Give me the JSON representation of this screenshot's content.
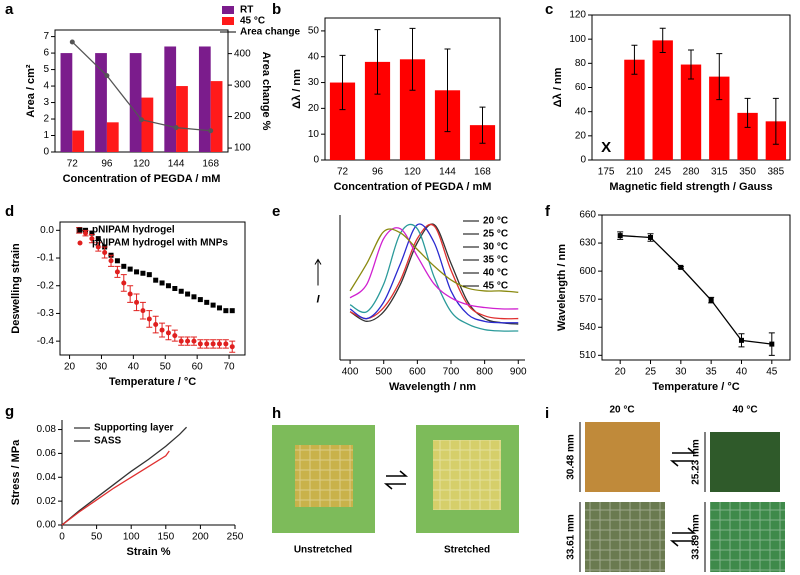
{
  "chart_data": [
    {
      "type": "bar",
      "panel_label": "a",
      "categories": [
        "72",
        "96",
        "120",
        "144",
        "168"
      ],
      "series": [
        {
          "name": "RT",
          "color": "#7b1c8c",
          "values": [
            6,
            6,
            6,
            6.4,
            6.4
          ]
        },
        {
          "name": "45 °C",
          "color": "#ff1a1a",
          "values": [
            1.3,
            1.8,
            3.3,
            4.0,
            4.3
          ]
        },
        {
          "name": "Area change",
          "type": "line",
          "axis": "y2",
          "color": "#555555",
          "marker": "circle",
          "values": [
            437,
            330,
            190,
            165,
            155
          ]
        }
      ],
      "xlabel": "Concentration of PEGDA / mM",
      "ylabel": "Area / cm²",
      "y2label": "Area change %",
      "ylim": [
        0,
        7.4
      ],
      "yticks": [
        0,
        1,
        2,
        3,
        4,
        5,
        6,
        7
      ],
      "y2lim": [
        87.5,
        475
      ],
      "y2ticks": [
        100,
        200,
        300,
        400
      ],
      "legend": "top",
      "grid": false
    },
    {
      "type": "bar",
      "panel_label": "b",
      "categories": [
        "72",
        "96",
        "120",
        "144",
        "168"
      ],
      "series": [
        {
          "name": "Δλ",
          "color": "#ff0000",
          "values": [
            30,
            38,
            39,
            27,
            13.5
          ],
          "errors": [
            10.5,
            12.5,
            12,
            16,
            7
          ]
        }
      ],
      "xlabel": "Concentration of PEGDA / mM",
      "ylabel": "Δλ / nm",
      "ylim": [
        0,
        55
      ],
      "yticks": [
        0,
        10,
        20,
        30,
        40,
        50
      ],
      "grid": false
    },
    {
      "type": "bar",
      "panel_label": "c",
      "categories": [
        "175",
        "210",
        "245",
        "280",
        "315",
        "350",
        "385"
      ],
      "series": [
        {
          "name": "Δλ",
          "color": "#ff0000",
          "values": [
            null,
            83,
            99,
            79,
            69,
            39,
            32
          ],
          "errors": [
            null,
            12,
            10,
            12,
            19,
            12,
            19
          ]
        }
      ],
      "annotation": "X",
      "xlabel": "Magnetic field strength / Gauss",
      "ylabel": "Δλ / nm",
      "ylim": [
        0,
        120
      ],
      "yticks": [
        0,
        20,
        40,
        60,
        80,
        100,
        120
      ],
      "grid": false
    },
    {
      "type": "scatter",
      "panel_label": "d",
      "x": [
        23,
        25,
        27,
        29,
        31,
        33,
        35,
        37,
        39,
        41,
        43,
        45,
        47,
        49,
        51,
        53,
        55,
        57,
        59,
        61,
        63,
        65,
        67,
        69,
        71
      ],
      "series": [
        {
          "name": "pNIPAM hydrogel",
          "color": "#000000",
          "marker": "square",
          "values": [
            0,
            0,
            -0.01,
            -0.03,
            -0.06,
            -0.09,
            -0.11,
            -0.13,
            -0.14,
            -0.15,
            -0.155,
            -0.16,
            -0.18,
            -0.19,
            -0.2,
            -0.21,
            -0.22,
            -0.23,
            -0.24,
            -0.25,
            -0.26,
            -0.27,
            -0.28,
            -0.29,
            -0.29
          ]
        },
        {
          "name": "pNIPAM hydrogel with MNPs",
          "color": "#e0201f",
          "marker": "circle",
          "values": [
            0,
            -0.01,
            -0.03,
            -0.06,
            -0.08,
            -0.11,
            -0.15,
            -0.19,
            -0.23,
            -0.26,
            -0.29,
            -0.32,
            -0.34,
            -0.36,
            -0.37,
            -0.38,
            -0.4,
            -0.4,
            -0.4,
            -0.41,
            -0.41,
            -0.41,
            -0.41,
            -0.41,
            -0.42
          ],
          "errors": [
            0.01,
            0.01,
            0.015,
            0.015,
            0.02,
            0.02,
            0.02,
            0.03,
            0.03,
            0.03,
            0.03,
            0.03,
            0.03,
            0.025,
            0.025,
            0.02,
            0.015,
            0.015,
            0.015,
            0.015,
            0.015,
            0.015,
            0.015,
            0.015,
            0.02
          ]
        }
      ],
      "xlabel": "Temperature / °C",
      "ylabel": "Deswelling strain",
      "xlim": [
        17,
        75
      ],
      "xticks": [
        20,
        30,
        40,
        50,
        60,
        70
      ],
      "ylim": [
        -0.45,
        0.03
      ],
      "yticks": [
        {
          "value": 0,
          "label": "0.0"
        },
        -0.1,
        -0.2,
        -0.3,
        -0.4
      ],
      "legend": "top-left",
      "grid": false
    },
    {
      "type": "line",
      "panel_label": "e",
      "smooth": true,
      "x": [
        400,
        450,
        500,
        550,
        600,
        650,
        700,
        750,
        800,
        850,
        900
      ],
      "series": [
        {
          "name": "20 °C",
          "color": "#333333",
          "values": [
            0.35,
            0.28,
            0.35,
            0.55,
            0.85,
            0.98,
            0.7,
            0.42,
            0.3,
            0.27,
            0.26
          ]
        },
        {
          "name": "25 °C",
          "color": "#e03030",
          "values": [
            0.35,
            0.3,
            0.38,
            0.58,
            0.88,
            0.97,
            0.65,
            0.4,
            0.32,
            0.3,
            0.3
          ]
        },
        {
          "name": "30 °C",
          "color": "#2a2ad0",
          "values": [
            0.37,
            0.3,
            0.42,
            0.7,
            0.98,
            0.85,
            0.5,
            0.33,
            0.28,
            0.27,
            0.27
          ]
        },
        {
          "name": "35 °C",
          "color": "#2a9a9a",
          "values": [
            0.4,
            0.35,
            0.55,
            0.92,
            0.95,
            0.6,
            0.35,
            0.26,
            0.22,
            0.21,
            0.21
          ]
        },
        {
          "name": "40 °C",
          "color": "#d020d0",
          "values": [
            0.45,
            0.55,
            0.88,
            0.95,
            0.75,
            0.55,
            0.45,
            0.4,
            0.38,
            0.37,
            0.37
          ]
        },
        {
          "name": "45 °C",
          "color": "#8a8a10",
          "values": [
            0.5,
            0.7,
            0.93,
            0.92,
            0.8,
            0.68,
            0.58,
            0.52,
            0.5,
            0.5,
            0.49
          ]
        }
      ],
      "xlabel": "Wavelength / nm",
      "ylabel": "I",
      "xlim": [
        370,
        920
      ],
      "xticks": [
        400,
        500,
        600,
        700,
        800,
        900
      ],
      "ylim": [
        0,
        1.05
      ],
      "legend": "top-right",
      "grid": false
    },
    {
      "type": "line",
      "panel_label": "f",
      "x": [
        20,
        25,
        30,
        35,
        40,
        45
      ],
      "series": [
        {
          "name": "Wavelength",
          "color": "#000000",
          "marker": "square",
          "values": [
            638,
            636,
            604,
            569,
            526,
            522
          ],
          "errors": [
            4,
            4,
            1,
            3,
            7,
            12
          ]
        }
      ],
      "xlabel": "Temperature / °C",
      "ylabel": "Wavelength / nm",
      "xlim": [
        17,
        48
      ],
      "xticks": [
        20,
        25,
        30,
        35,
        40,
        45
      ],
      "ylim": [
        505,
        660
      ],
      "yticks": [
        510,
        540,
        570,
        600,
        630,
        660
      ],
      "grid": false
    },
    {
      "type": "line",
      "panel_label": "g",
      "series": [
        {
          "name": "Supporting layer",
          "color": "#333333",
          "x": [
            0,
            25,
            50,
            75,
            100,
            125,
            150,
            170,
            180
          ],
          "values": [
            0,
            0.012,
            0.023,
            0.034,
            0.045,
            0.055,
            0.066,
            0.076,
            0.082
          ]
        },
        {
          "name": "SASS",
          "color": "#e03030",
          "x": [
            0,
            25,
            50,
            75,
            100,
            125,
            150,
            155
          ],
          "values": [
            0,
            0.011,
            0.021,
            0.031,
            0.04,
            0.049,
            0.058,
            0.062
          ]
        }
      ],
      "xlabel": "Strain %",
      "ylabel": "Stress / MPa",
      "xlim": [
        0,
        250
      ],
      "xticks": [
        0,
        50,
        100,
        150,
        200,
        250
      ],
      "ylim": [
        0,
        0.088
      ],
      "yticks": [
        {
          "value": 0,
          "label": "0.00"
        },
        {
          "value": 0.02,
          "label": "0.02"
        },
        {
          "value": 0.04,
          "label": "0.04"
        },
        {
          "value": 0.06,
          "label": "0.06"
        },
        {
          "value": 0.08,
          "label": "0.08"
        }
      ],
      "legend": "top-left",
      "grid": false
    }
  ],
  "photos": {
    "h": {
      "panel_label": "h",
      "left_caption": "Unstretched",
      "right_caption": "Stretched"
    },
    "i": {
      "panel_label": "i",
      "columns": [
        "20 °C",
        "40 °C"
      ],
      "dimensions": [
        "30.48 mm",
        "25.23 mm",
        "33.61 mm",
        "33.89 mm"
      ]
    }
  }
}
